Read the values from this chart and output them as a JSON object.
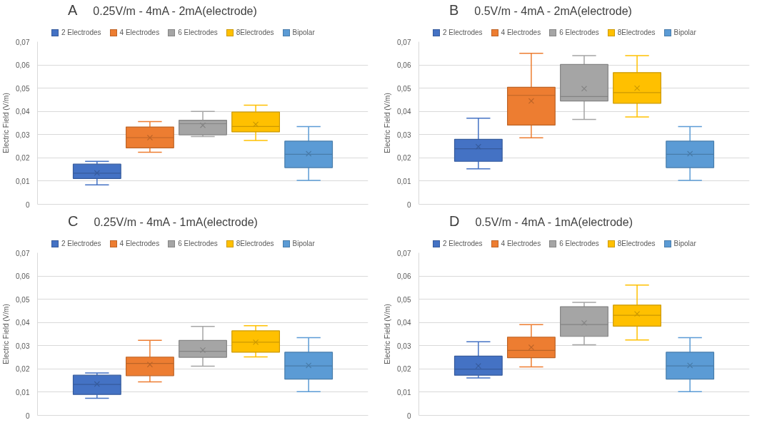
{
  "chart_data": [
    {
      "type": "box",
      "title": "A",
      "subtitle": "0.25V/m - 4mA - 2mA(electrode)",
      "ylabel": "Electric Field (V/m)",
      "categories": [
        null
      ],
      "ylim": [
        0,
        0.07
      ],
      "yticks": [
        0,
        {
          "value": 0.01,
          "label": "0,01"
        },
        {
          "value": 0.02,
          "label": "0,02"
        },
        {
          "value": 0.03,
          "label": "0,03"
        },
        {
          "value": 0.04,
          "label": "0,04"
        },
        {
          "value": 0.05,
          "label": "0,05"
        },
        {
          "value": 0.06,
          "label": "0,06"
        },
        {
          "value": 0.07,
          "label": "0,07"
        }
      ],
      "grid": "y",
      "legend": "top",
      "tick_labels": "y",
      "marker": "cross",
      "series": [
        {
          "name": "2 Electrodes",
          "color": "#4472c4",
          "boxes": [
            {
              "low": 0.0084,
              "q1": 0.0111,
              "median": 0.0134,
              "q3": 0.0173,
              "high": 0.0185,
              "mean": 0.0135
            }
          ]
        },
        {
          "name": "4 Electrodes",
          "color": "#ed7d31",
          "boxes": [
            {
              "low": 0.0224,
              "q1": 0.0243,
              "median": 0.0287,
              "q3": 0.0333,
              "high": 0.0356,
              "mean": 0.0287
            }
          ]
        },
        {
          "name": "6 Electrodes",
          "color": "#a5a5a5",
          "boxes": [
            {
              "low": 0.0292,
              "q1": 0.0299,
              "median": 0.0347,
              "q3": 0.0362,
              "high": 0.04,
              "mean": 0.034
            }
          ]
        },
        {
          "name": "8Electrodes",
          "color": "#ffc000",
          "boxes": [
            {
              "low": 0.0275,
              "q1": 0.0312,
              "median": 0.0335,
              "q3": 0.0397,
              "high": 0.0427,
              "mean": 0.0344
            }
          ]
        },
        {
          "name": "Bipolar",
          "color": "#5b9bd5",
          "boxes": [
            {
              "low": 0.0103,
              "q1": 0.0158,
              "median": 0.0215,
              "q3": 0.0272,
              "high": 0.0335,
              "mean": 0.0218
            }
          ]
        }
      ]
    },
    {
      "type": "box",
      "title": "B",
      "subtitle": "0.5V/m - 4mA - 2mA(electrode)",
      "ylabel": "Electric Field (V/m)",
      "categories": [
        null
      ],
      "ylim": [
        0,
        0.07
      ],
      "yticks": [
        0,
        {
          "value": 0.01,
          "label": "0,01"
        },
        {
          "value": 0.02,
          "label": "0,02"
        },
        {
          "value": 0.03,
          "label": "0,03"
        },
        {
          "value": 0.04,
          "label": "0,04"
        },
        {
          "value": 0.05,
          "label": "0,05"
        },
        {
          "value": 0.06,
          "label": "0,06"
        },
        {
          "value": 0.07,
          "label": "0,07"
        }
      ],
      "grid": "y",
      "legend": "top",
      "tick_labels": "y",
      "marker": "cross",
      "series": [
        {
          "name": "2 Electrodes",
          "color": "#4472c4",
          "boxes": [
            {
              "low": 0.0153,
              "q1": 0.0185,
              "median": 0.0239,
              "q3": 0.028,
              "high": 0.0371,
              "mean": 0.0248
            }
          ]
        },
        {
          "name": "4 Electrodes",
          "color": "#ed7d31",
          "boxes": [
            {
              "low": 0.0286,
              "q1": 0.0341,
              "median": 0.0469,
              "q3": 0.0504,
              "high": 0.065,
              "mean": 0.0445
            }
          ]
        },
        {
          "name": "6 Electrodes",
          "color": "#a5a5a5",
          "boxes": [
            {
              "low": 0.0365,
              "q1": 0.0445,
              "median": 0.0464,
              "q3": 0.0602,
              "high": 0.064,
              "mean": 0.0498
            }
          ]
        },
        {
          "name": "8Electrodes",
          "color": "#ffc000",
          "boxes": [
            {
              "low": 0.0376,
              "q1": 0.0435,
              "median": 0.0481,
              "q3": 0.0567,
              "high": 0.064,
              "mean": 0.05
            }
          ]
        },
        {
          "name": "Bipolar",
          "color": "#5b9bd5",
          "boxes": [
            {
              "low": 0.0103,
              "q1": 0.0158,
              "median": 0.0215,
              "q3": 0.0272,
              "high": 0.0335,
              "mean": 0.0218
            }
          ]
        }
      ]
    },
    {
      "type": "box",
      "title": "C",
      "subtitle": "0.25V/m - 4mA - 1mA(electrode)",
      "ylabel": "Electric Field (V/m)",
      "categories": [
        null
      ],
      "ylim": [
        0,
        0.07
      ],
      "yticks": [
        0,
        {
          "value": 0.01,
          "label": "0,01"
        },
        {
          "value": 0.02,
          "label": "0,02"
        },
        {
          "value": 0.03,
          "label": "0,03"
        },
        {
          "value": 0.04,
          "label": "0,04"
        },
        {
          "value": 0.05,
          "label": "0,05"
        },
        {
          "value": 0.06,
          "label": "0,06"
        },
        {
          "value": 0.07,
          "label": "0,07"
        }
      ],
      "grid": "y",
      "legend": "top",
      "tick_labels": "y",
      "marker": "cross",
      "series": [
        {
          "name": "2 Electrodes",
          "color": "#4472c4",
          "boxes": [
            {
              "low": 0.0074,
              "q1": 0.009,
              "median": 0.0133,
              "q3": 0.0173,
              "high": 0.0183,
              "mean": 0.0135
            }
          ]
        },
        {
          "name": "4 Electrodes",
          "color": "#ed7d31",
          "boxes": [
            {
              "low": 0.0144,
              "q1": 0.0171,
              "median": 0.0224,
              "q3": 0.0251,
              "high": 0.0323,
              "mean": 0.0219
            }
          ]
        },
        {
          "name": "6 Electrodes",
          "color": "#a5a5a5",
          "boxes": [
            {
              "low": 0.0212,
              "q1": 0.025,
              "median": 0.0276,
              "q3": 0.0323,
              "high": 0.0383,
              "mean": 0.0281
            }
          ]
        },
        {
          "name": "8Electrodes",
          "color": "#ffc000",
          "boxes": [
            {
              "low": 0.0252,
              "q1": 0.0272,
              "median": 0.0315,
              "q3": 0.0364,
              "high": 0.0386,
              "mean": 0.0315
            }
          ]
        },
        {
          "name": "Bipolar",
          "color": "#5b9bd5",
          "boxes": [
            {
              "low": 0.0102,
              "q1": 0.0156,
              "median": 0.0213,
              "q3": 0.0272,
              "high": 0.0335,
              "mean": 0.0215
            }
          ]
        }
      ]
    },
    {
      "type": "box",
      "title": "D",
      "subtitle": "0.5V/m - 4mA - 1mA(electrode)",
      "ylabel": "Electric Field (V/m)",
      "categories": [
        null
      ],
      "ylim": [
        0,
        0.07
      ],
      "yticks": [
        0,
        {
          "value": 0.01,
          "label": "0,01"
        },
        {
          "value": 0.02,
          "label": "0,02"
        },
        {
          "value": 0.03,
          "label": "0,03"
        },
        {
          "value": 0.04,
          "label": "0,04"
        },
        {
          "value": 0.05,
          "label": "0,05"
        },
        {
          "value": 0.06,
          "label": "0,06"
        },
        {
          "value": 0.07,
          "label": "0,07"
        }
      ],
      "grid": "y",
      "legend": "top",
      "tick_labels": "y",
      "marker": "cross",
      "series": [
        {
          "name": "2 Electrodes",
          "color": "#4472c4",
          "boxes": [
            {
              "low": 0.0161,
              "q1": 0.0173,
              "median": 0.0199,
              "q3": 0.0255,
              "high": 0.0317,
              "mean": 0.0213
            }
          ]
        },
        {
          "name": "4 Electrodes",
          "color": "#ed7d31",
          "boxes": [
            {
              "low": 0.0209,
              "q1": 0.0248,
              "median": 0.028,
              "q3": 0.0337,
              "high": 0.0391,
              "mean": 0.0293
            }
          ]
        },
        {
          "name": "6 Electrodes",
          "color": "#a5a5a5",
          "boxes": [
            {
              "low": 0.0304,
              "q1": 0.034,
              "median": 0.0391,
              "q3": 0.0468,
              "high": 0.0487,
              "mean": 0.0398
            }
          ]
        },
        {
          "name": "8Electrodes",
          "color": "#ffc000",
          "boxes": [
            {
              "low": 0.0325,
              "q1": 0.0384,
              "median": 0.0431,
              "q3": 0.0475,
              "high": 0.0561,
              "mean": 0.0437
            }
          ]
        },
        {
          "name": "Bipolar",
          "color": "#5b9bd5",
          "boxes": [
            {
              "low": 0.0102,
              "q1": 0.0156,
              "median": 0.0213,
              "q3": 0.0272,
              "high": 0.0335,
              "mean": 0.0215
            }
          ]
        }
      ]
    }
  ]
}
